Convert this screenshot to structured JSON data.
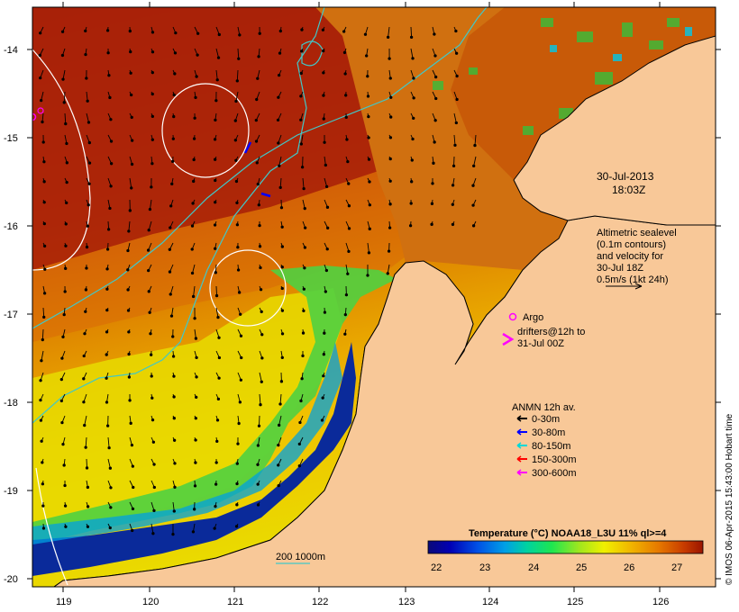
{
  "map": {
    "lon_ticks": [
      "119",
      "120",
      "121",
      "122",
      "123",
      "124",
      "125",
      "126"
    ],
    "lat_ticks": [
      "-14",
      "-15",
      "-16",
      "-17",
      "-18",
      "-19",
      "-20"
    ],
    "lon_range": [
      118.65,
      126.7
    ],
    "lat_range": [
      -20.05,
      -13.65
    ],
    "land_color": "#f8c898",
    "coast_color": "#000000"
  },
  "timestamp": {
    "line1": "30-Jul-2013",
    "line2": "18:03Z"
  },
  "altimetry": {
    "lines": [
      "Altimetric sealevel",
      "(0.1m contours)",
      "and velocity for",
      "30-Jul 18Z",
      "0.5m/s (1kt 24h)"
    ]
  },
  "argo": {
    "label": "Argo",
    "color": "#ff00ff"
  },
  "drifters": {
    "lines": [
      "drifters@12h to",
      "31-Jul 00Z"
    ],
    "color": "#ff00ff"
  },
  "anmn": {
    "title": "ANMN 12h av.",
    "items": [
      {
        "label": "0-30m",
        "color": "#000000"
      },
      {
        "label": "30-80m",
        "color": "#0000ff"
      },
      {
        "label": "80-150m",
        "color": "#00d8d8"
      },
      {
        "label": "150-300m",
        "color": "#ff0000"
      },
      {
        "label": "300-600m",
        "color": "#ff00ff"
      }
    ]
  },
  "isobath_label": "200  1000m",
  "isobath_color": "#40c8c8",
  "colorbar": {
    "title": "Temperature (°C) NOAA18_L3U 11% ql>=4",
    "ticks": [
      "22",
      "23",
      "24",
      "25",
      "26",
      "27"
    ],
    "range": [
      21.8,
      27.5
    ]
  },
  "credit": "© IMOS 06-Apr-2015 15:43:00 Hobart time"
}
